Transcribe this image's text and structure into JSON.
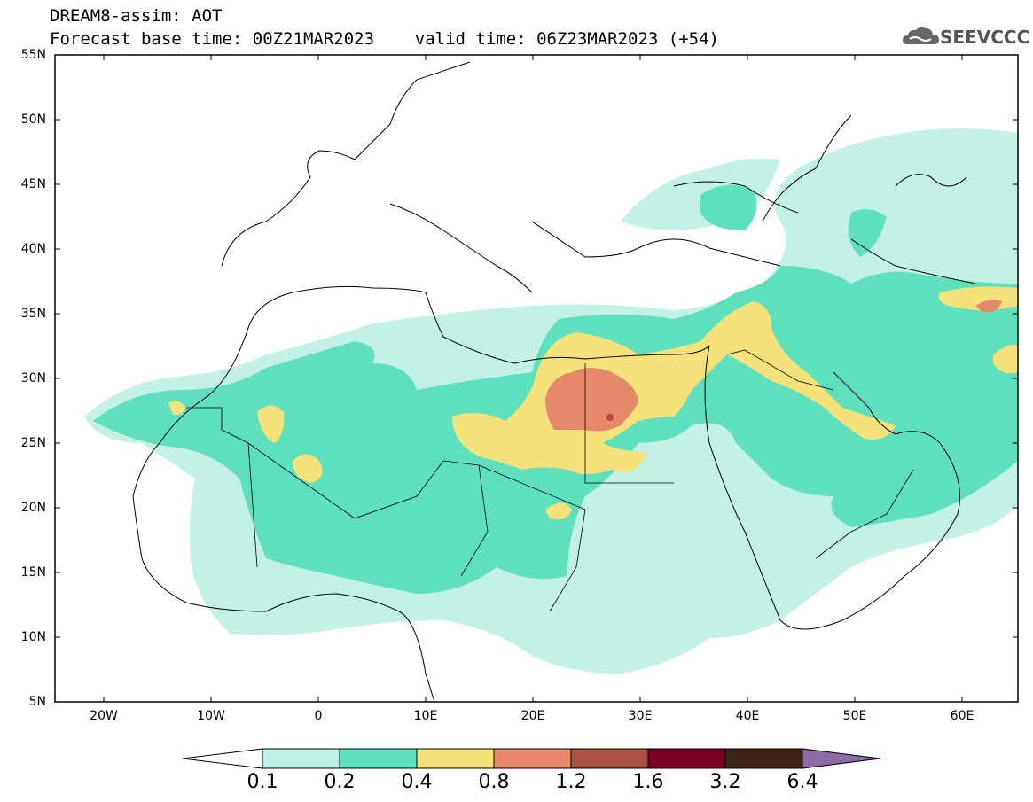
{
  "header": {
    "line1": "DREAM8-assim: AOT",
    "line2": "Forecast base time: 00Z21MAR2023    valid time: 06Z23MAR2023 (+54)"
  },
  "logo": {
    "text": "SEEVCCC",
    "icon": "cloud-icon"
  },
  "map": {
    "variable": "AOT",
    "lat_labels": [
      "55N",
      "50N",
      "45N",
      "40N",
      "35N",
      "30N",
      "25N",
      "20N",
      "15N",
      "10N",
      "5N"
    ],
    "lon_labels": [
      "20W",
      "10W",
      "0",
      "10E",
      "20E",
      "30E",
      "40E",
      "50E",
      "60E"
    ],
    "lat_range": [
      5,
      55
    ],
    "lon_range": [
      -25,
      65
    ]
  },
  "colorbar": {
    "labels": [
      "0.1",
      "0.2",
      "0.4",
      "0.8",
      "1.2",
      "1.6",
      "3.2",
      "6.4"
    ],
    "colors": [
      "#ffffff",
      "#bff0e6",
      "#5ee0bc",
      "#f5e27a",
      "#e8896a",
      "#a8503f",
      "#7a0026",
      "#3d2316",
      "#8c6ba8"
    ]
  },
  "colors": {
    "c1": "#c3f1e8",
    "c2": "#5fe0bc",
    "c3": "#f5e27a",
    "c4": "#e6896b",
    "c5": "#a8503f"
  }
}
